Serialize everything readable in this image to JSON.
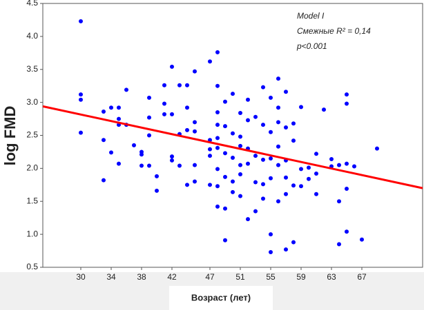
{
  "chart_data": {
    "type": "scatter",
    "ylabel": "log FMD",
    "xlabel": "Возраст (лет)",
    "annotations": [
      "Model I",
      "Смежные R² = 0,14",
      "p<0.001"
    ],
    "xlim": [
      25,
      75
    ],
    "ylim": [
      0.5,
      4.5
    ],
    "xticks": [
      30,
      34,
      38,
      42,
      47,
      51,
      55,
      59,
      63,
      67
    ],
    "yticks": [
      0.5,
      {
        "value": 1,
        "label": "1.0"
      },
      1.5,
      {
        "value": 2,
        "label": "2.0"
      },
      2.5,
      {
        "value": 3,
        "label": "3.0"
      },
      3.5,
      {
        "value": 4,
        "label": "4.0"
      },
      4.5
    ],
    "color": "#0000ff",
    "x": [
      30,
      30,
      30,
      30,
      33,
      33,
      33,
      34,
      34,
      35,
      35,
      35,
      35,
      36,
      36,
      37,
      38,
      38,
      38,
      39,
      39,
      39,
      39,
      40,
      40,
      41,
      41,
      41,
      42,
      42,
      42,
      42,
      43,
      43,
      43,
      44,
      44,
      44,
      44,
      45,
      45,
      45,
      45,
      45,
      47,
      47,
      47,
      47,
      47,
      48,
      48,
      48,
      48,
      48,
      48,
      48,
      48,
      48,
      49,
      49,
      49,
      49,
      49,
      49,
      50,
      50,
      50,
      50,
      50,
      51,
      51,
      51,
      51,
      51,
      51,
      52,
      52,
      52,
      52,
      52,
      53,
      53,
      53,
      53,
      54,
      54,
      54,
      54,
      54,
      55,
      55,
      55,
      55,
      55,
      55,
      56,
      56,
      56,
      56,
      56,
      56,
      57,
      57,
      57,
      57,
      57,
      57,
      58,
      58,
      58,
      58,
      59,
      59,
      59,
      60,
      60,
      61,
      61,
      61,
      62,
      63,
      63,
      64,
      64,
      64,
      65,
      65,
      65,
      65,
      65,
      66,
      67,
      69
    ],
    "y": [
      4.23,
      3.12,
      3.04,
      2.54,
      2.86,
      2.43,
      1.82,
      2.92,
      2.24,
      2.92,
      2.75,
      2.66,
      2.07,
      3.19,
      2.66,
      2.35,
      2.25,
      2.21,
      2.04,
      3.07,
      2.77,
      2.5,
      2.04,
      1.88,
      1.66,
      3.26,
      2.98,
      2.82,
      3.54,
      2.82,
      2.18,
      2.12,
      3.26,
      2.52,
      2.04,
      3.26,
      2.92,
      2.58,
      1.75,
      3.47,
      2.7,
      2.56,
      2.05,
      1.8,
      3.62,
      2.43,
      2.29,
      2.19,
      1.75,
      3.76,
      3.25,
      2.85,
      2.66,
      2.46,
      2.31,
      1.99,
      1.73,
      1.42,
      3.01,
      2.64,
      2.23,
      1.87,
      1.39,
      0.91,
      3.13,
      2.53,
      2.16,
      1.8,
      1.64,
      2.84,
      2.48,
      2.34,
      2.05,
      1.91,
      1.58,
      3.04,
      2.73,
      2.3,
      2.07,
      1.23,
      2.78,
      2.19,
      1.79,
      1.35,
      3.23,
      2.66,
      2.13,
      1.76,
      1.54,
      3.07,
      2.55,
      2.15,
      1.85,
      1.0,
      0.73,
      3.36,
      2.92,
      2.7,
      2.33,
      2.05,
      1.5,
      3.16,
      2.62,
      2.12,
      1.86,
      1.61,
      0.77,
      2.68,
      2.42,
      1.74,
      0.88,
      2.93,
      1.99,
      1.73,
      2.01,
      1.84,
      2.22,
      1.92,
      1.61,
      2.89,
      2.14,
      2.03,
      2.05,
      1.5,
      0.85,
      3.12,
      2.98,
      2.07,
      1.69,
      1.04,
      2.03,
      0.92,
      2.3
    ],
    "fit": {
      "color": "#ff0000",
      "x": [
        25,
        75
      ],
      "y": [
        2.94,
        1.7
      ]
    }
  }
}
